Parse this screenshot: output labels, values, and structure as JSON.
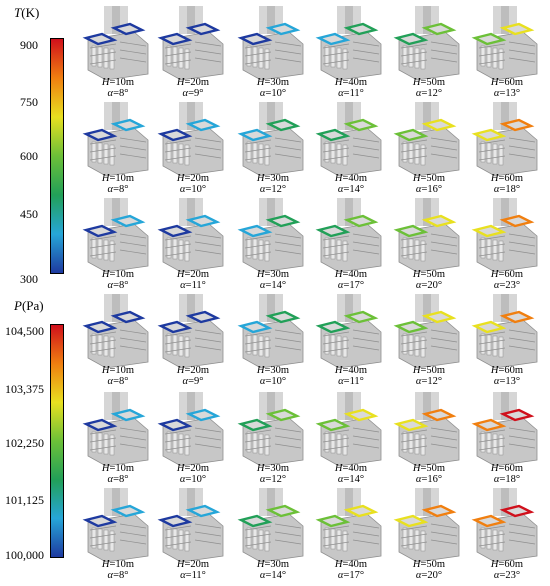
{
  "colorbars": [
    {
      "id": "temperature",
      "symbol": "T",
      "unit": "(K)",
      "ticks": [
        "900",
        "750",
        "600",
        "450",
        "300"
      ],
      "colors": [
        "#d0101c",
        "#f07f10",
        "#e8e020",
        "#6cc038",
        "#22a058",
        "#26a6d8",
        "#1e3aa0"
      ]
    },
    {
      "id": "pressure",
      "symbol": "P",
      "unit": "(Pa)",
      "ticks": [
        "104,500",
        "103,375",
        "102,250",
        "101,125",
        "100,000"
      ],
      "colors": [
        "#d0101c",
        "#f07f10",
        "#e8e020",
        "#6cc038",
        "#22a058",
        "#26a6d8",
        "#1e3aa0"
      ]
    }
  ],
  "heights": [
    "10m",
    "20m",
    "30m",
    "40m",
    "50m",
    "60m"
  ],
  "rows": [
    {
      "field": "temperature",
      "angles": [
        "8°",
        "9°",
        "10°",
        "11°",
        "12°",
        "13°"
      ]
    },
    {
      "field": "temperature",
      "angles": [
        "8°",
        "10°",
        "12°",
        "14°",
        "16°",
        "18°"
      ]
    },
    {
      "field": "temperature",
      "angles": [
        "8°",
        "11°",
        "14°",
        "17°",
        "20°",
        "23°"
      ]
    },
    {
      "field": "pressure",
      "angles": [
        "8°",
        "9°",
        "10°",
        "11°",
        "12°",
        "13°"
      ]
    },
    {
      "field": "pressure",
      "angles": [
        "8°",
        "10°",
        "12°",
        "14°",
        "16°",
        "18°"
      ]
    },
    {
      "field": "pressure",
      "angles": [
        "8°",
        "11°",
        "14°",
        "17°",
        "20°",
        "23°"
      ]
    }
  ],
  "labels": {
    "h_symbol": "H",
    "a_symbol": "α",
    "eq": "="
  }
}
